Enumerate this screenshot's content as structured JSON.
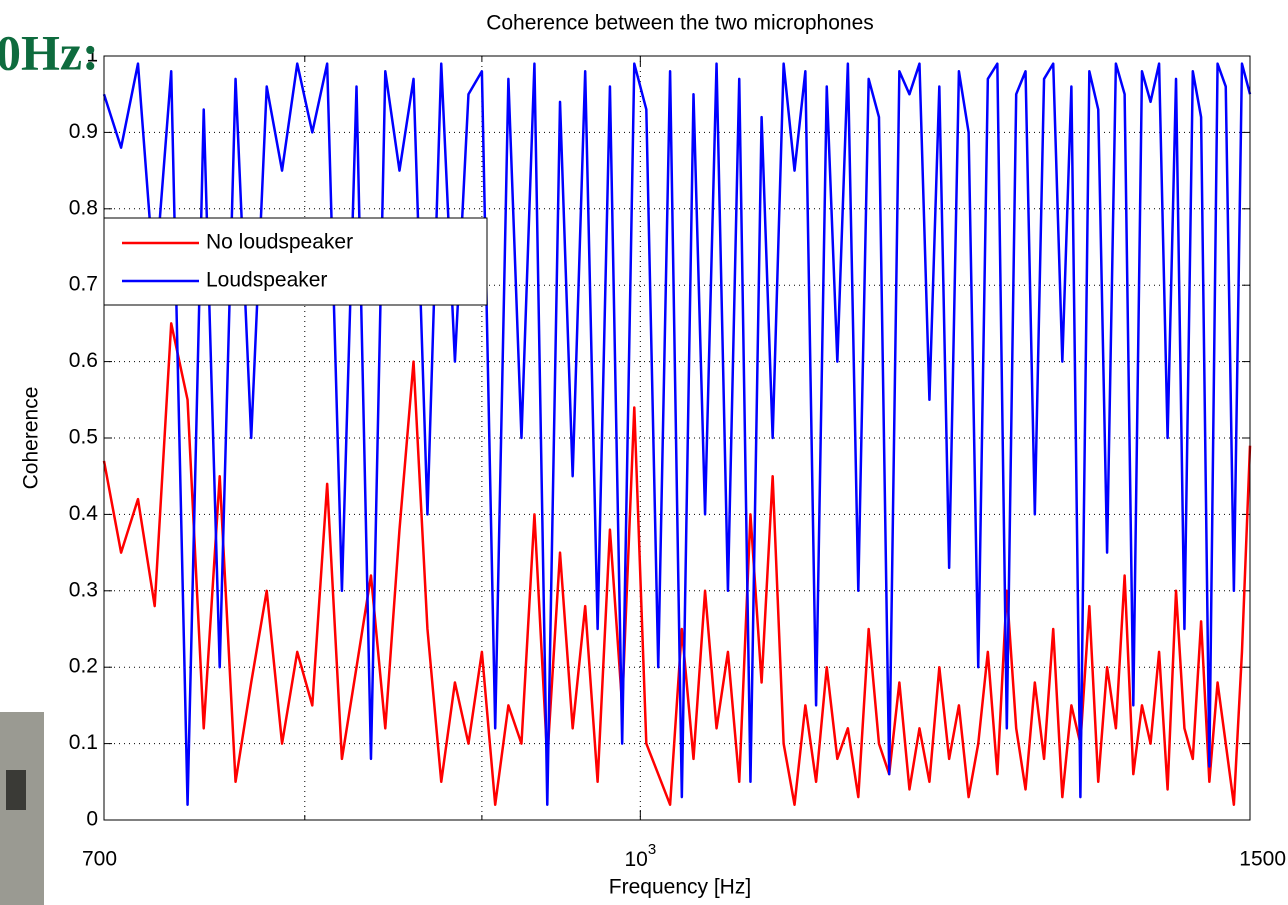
{
  "slide_fragment": "0Hz:",
  "chart_data": {
    "type": "line",
    "title": "Coherence between the two microphones",
    "xlabel": "Frequency [Hz]",
    "ylabel": "Coherence",
    "xscale": "log",
    "xlim": [
      700,
      1500
    ],
    "xticks": [
      700,
      {
        "value": 1000,
        "label": "10^3"
      },
      1500
    ],
    "xminor_ticks": [
      800,
      900
    ],
    "ylim": [
      0,
      1
    ],
    "yticks": [
      0,
      0.1,
      0.2,
      0.3,
      0.4,
      0.5,
      0.6,
      0.7,
      0.8,
      0.9,
      1
    ],
    "grid": true,
    "legend": "upper left",
    "x": [
      700,
      708,
      716,
      724,
      732,
      740,
      748,
      756,
      764,
      772,
      780,
      788,
      796,
      804,
      812,
      820,
      828,
      836,
      844,
      852,
      860,
      868,
      876,
      884,
      892,
      900,
      908,
      916,
      924,
      932,
      940,
      948,
      956,
      964,
      972,
      980,
      988,
      996,
      1004,
      1012,
      1020,
      1028,
      1036,
      1044,
      1052,
      1060,
      1068,
      1076,
      1084,
      1092,
      1100,
      1108,
      1116,
      1124,
      1132,
      1140,
      1148,
      1156,
      1164,
      1172,
      1180,
      1188,
      1196,
      1204,
      1212,
      1220,
      1228,
      1236,
      1244,
      1252,
      1260,
      1268,
      1276,
      1284,
      1292,
      1300,
      1308,
      1316,
      1324,
      1332,
      1340,
      1348,
      1356,
      1364,
      1372,
      1380,
      1388,
      1396,
      1404,
      1412,
      1420,
      1428,
      1436,
      1444,
      1452,
      1460,
      1468,
      1476,
      1484,
      1492,
      1500
    ],
    "series": [
      {
        "name": "No loudspeaker",
        "color": "#ff0000",
        "values": [
          0.47,
          0.35,
          0.42,
          0.28,
          0.65,
          0.55,
          0.12,
          0.45,
          0.05,
          0.18,
          0.3,
          0.1,
          0.22,
          0.15,
          0.44,
          0.08,
          0.2,
          0.32,
          0.12,
          0.38,
          0.6,
          0.25,
          0.05,
          0.18,
          0.1,
          0.22,
          0.02,
          0.15,
          0.1,
          0.4,
          0.08,
          0.35,
          0.12,
          0.28,
          0.05,
          0.38,
          0.15,
          0.54,
          0.1,
          0.06,
          0.02,
          0.25,
          0.08,
          0.3,
          0.12,
          0.22,
          0.05,
          0.4,
          0.18,
          0.45,
          0.1,
          0.02,
          0.15,
          0.05,
          0.2,
          0.08,
          0.12,
          0.03,
          0.25,
          0.1,
          0.06,
          0.18,
          0.04,
          0.12,
          0.05,
          0.2,
          0.08,
          0.15,
          0.03,
          0.1,
          0.22,
          0.06,
          0.3,
          0.12,
          0.04,
          0.18,
          0.08,
          0.25,
          0.03,
          0.15,
          0.1,
          0.28,
          0.05,
          0.2,
          0.12,
          0.32,
          0.06,
          0.15,
          0.1,
          0.22,
          0.04,
          0.3,
          0.12,
          0.08,
          0.26,
          0.05,
          0.18,
          0.1,
          0.02,
          0.22,
          0.49
        ]
      },
      {
        "name": "Loudspeaker",
        "color": "#0000ff",
        "values": [
          0.95,
          0.88,
          0.99,
          0.7,
          0.98,
          0.02,
          0.93,
          0.2,
          0.97,
          0.5,
          0.96,
          0.85,
          0.99,
          0.9,
          0.99,
          0.3,
          0.96,
          0.08,
          0.98,
          0.85,
          0.97,
          0.4,
          0.99,
          0.6,
          0.95,
          0.98,
          0.12,
          0.97,
          0.5,
          0.99,
          0.02,
          0.94,
          0.45,
          0.98,
          0.25,
          0.96,
          0.1,
          0.99,
          0.93,
          0.2,
          0.98,
          0.03,
          0.95,
          0.4,
          0.99,
          0.3,
          0.97,
          0.05,
          0.92,
          0.5,
          0.99,
          0.85,
          0.98,
          0.15,
          0.96,
          0.6,
          0.99,
          0.3,
          0.97,
          0.92,
          0.06,
          0.98,
          0.95,
          0.99,
          0.55,
          0.96,
          0.33,
          0.98,
          0.9,
          0.2,
          0.97,
          0.99,
          0.12,
          0.95,
          0.98,
          0.4,
          0.97,
          0.99,
          0.6,
          0.96,
          0.03,
          0.98,
          0.93,
          0.35,
          0.99,
          0.95,
          0.15,
          0.98,
          0.94,
          0.99,
          0.5,
          0.97,
          0.25,
          0.98,
          0.92,
          0.07,
          0.99,
          0.96,
          0.3,
          0.99,
          0.95
        ]
      }
    ]
  }
}
